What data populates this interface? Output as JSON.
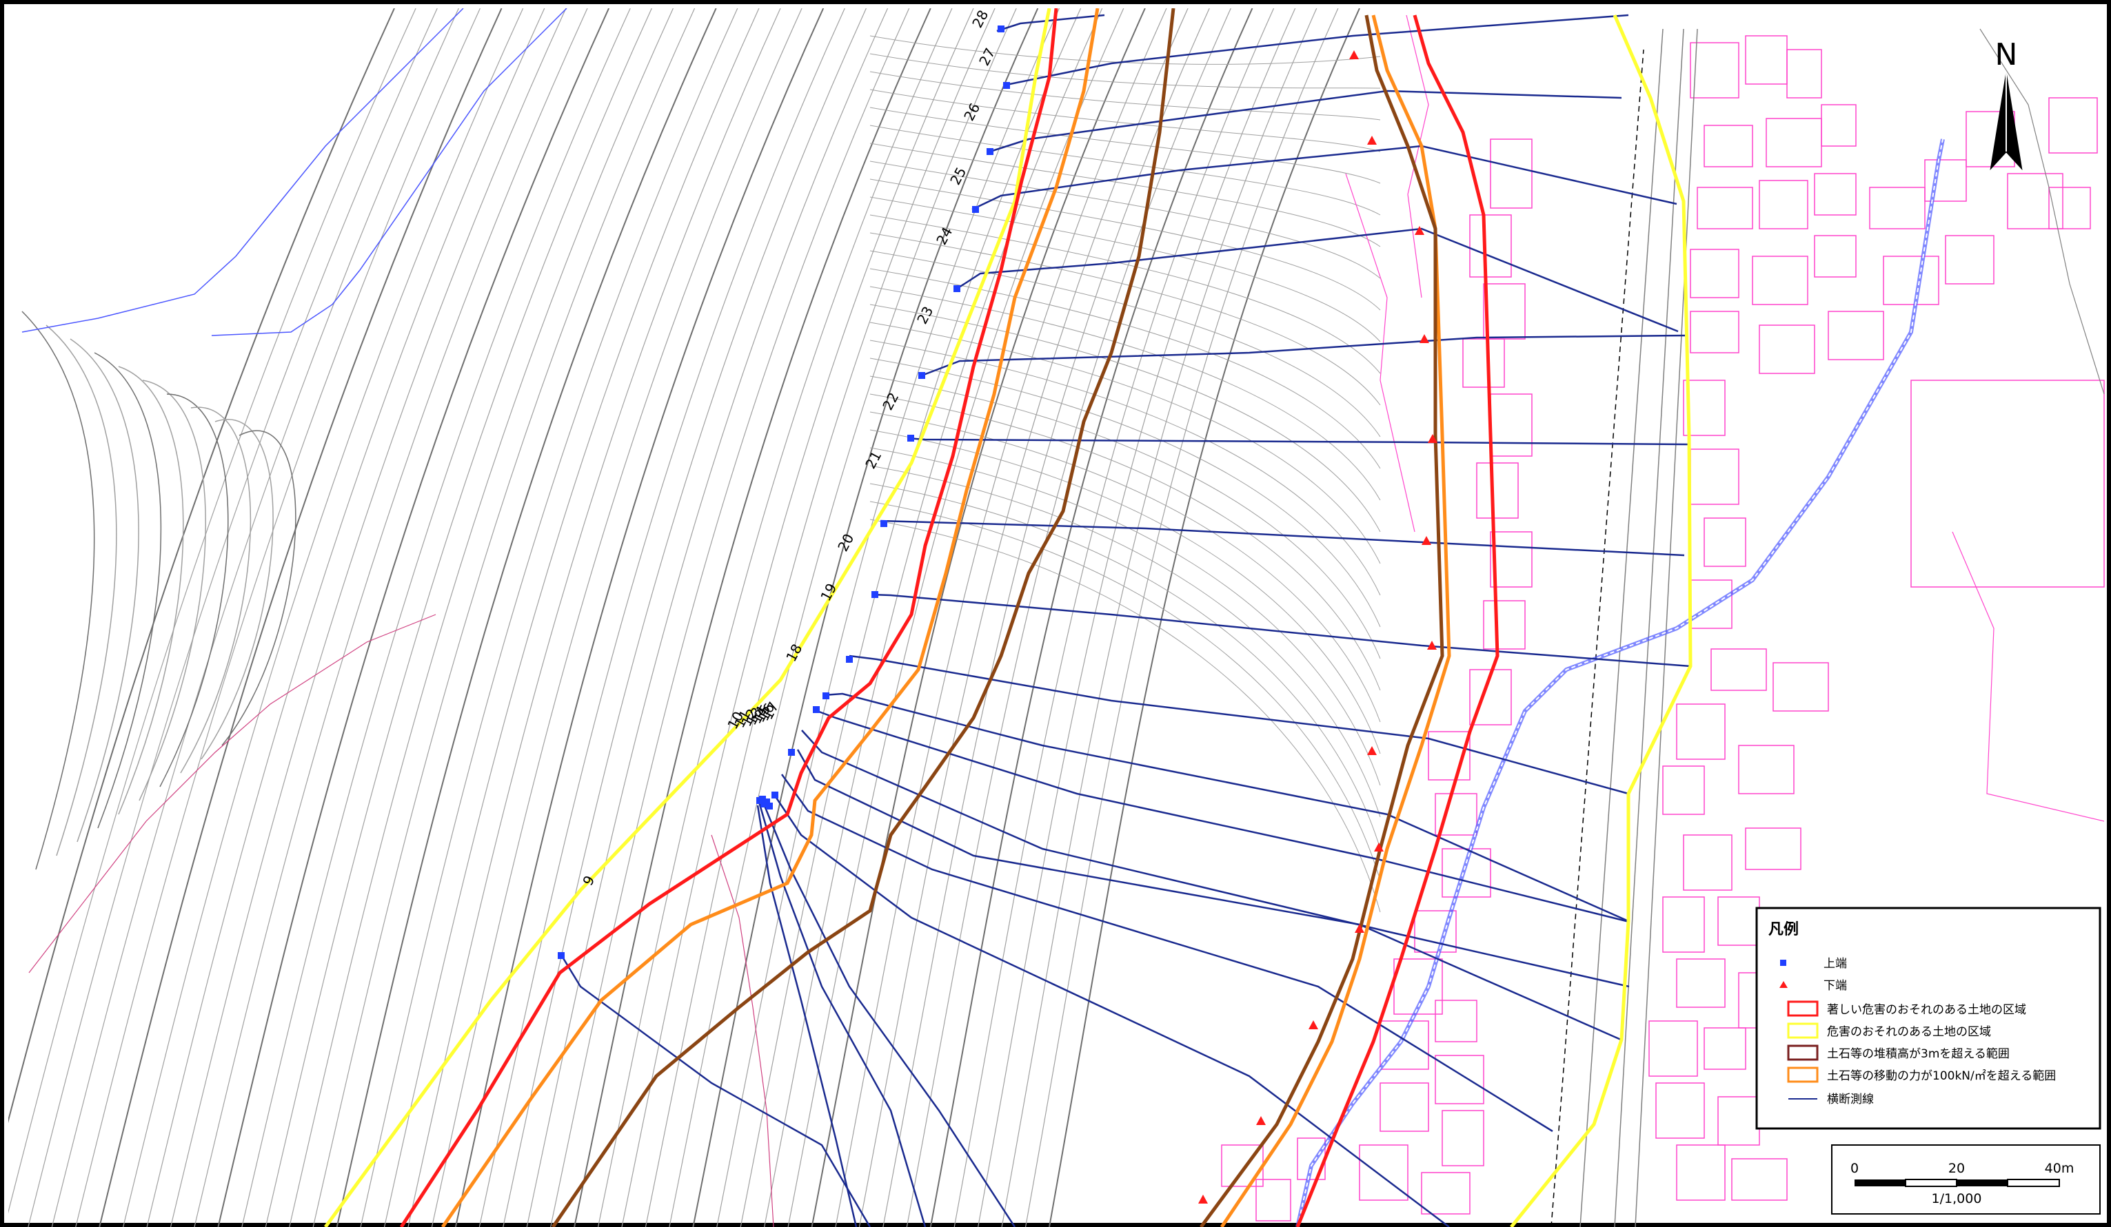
{
  "map": {
    "north_label": "N",
    "section_labels": [
      "9",
      "10",
      "11",
      "12",
      "13",
      "14",
      "15",
      "16",
      "17",
      "18",
      "19",
      "20",
      "21",
      "22",
      "23",
      "24",
      "25",
      "26",
      "27",
      "28"
    ],
    "legend": {
      "title": "凡例",
      "items": [
        {
          "label": "上端",
          "symbol": "square",
          "color": "#1f3fff"
        },
        {
          "label": "下端",
          "symbol": "triangle",
          "color": "#ff1a1a"
        },
        {
          "label": "著しい危害のおそれのある土地の区域",
          "symbol": "box",
          "color": "#ff1a1a"
        },
        {
          "label": "危害のおそれのある土地の区域",
          "symbol": "box",
          "color": "#ffff33"
        },
        {
          "label": "土石等の堆積高が3mを超える範囲",
          "symbol": "box",
          "color": "#7a1f1f"
        },
        {
          "label": "土石等の移動の力が100kN/㎡を超える範囲",
          "symbol": "box",
          "color": "#ff8c1a"
        },
        {
          "label": "横断測線",
          "symbol": "line",
          "color": "#1a2a8f"
        }
      ]
    },
    "scale_bar": {
      "labels": [
        "0",
        "20",
        "40m"
      ],
      "ratio": "1/1,000"
    },
    "colors": {
      "contour": "#a0a0a0",
      "contour_dark": "#6e6e6e",
      "building": "#ff44cc",
      "section_line": "#1a2a8f",
      "red_zone": "#ff1a1a",
      "yellow_zone": "#ffff33",
      "brown_zone": "#8b4513",
      "orange_zone": "#ff8c1a",
      "water": "#4a55ff"
    }
  }
}
